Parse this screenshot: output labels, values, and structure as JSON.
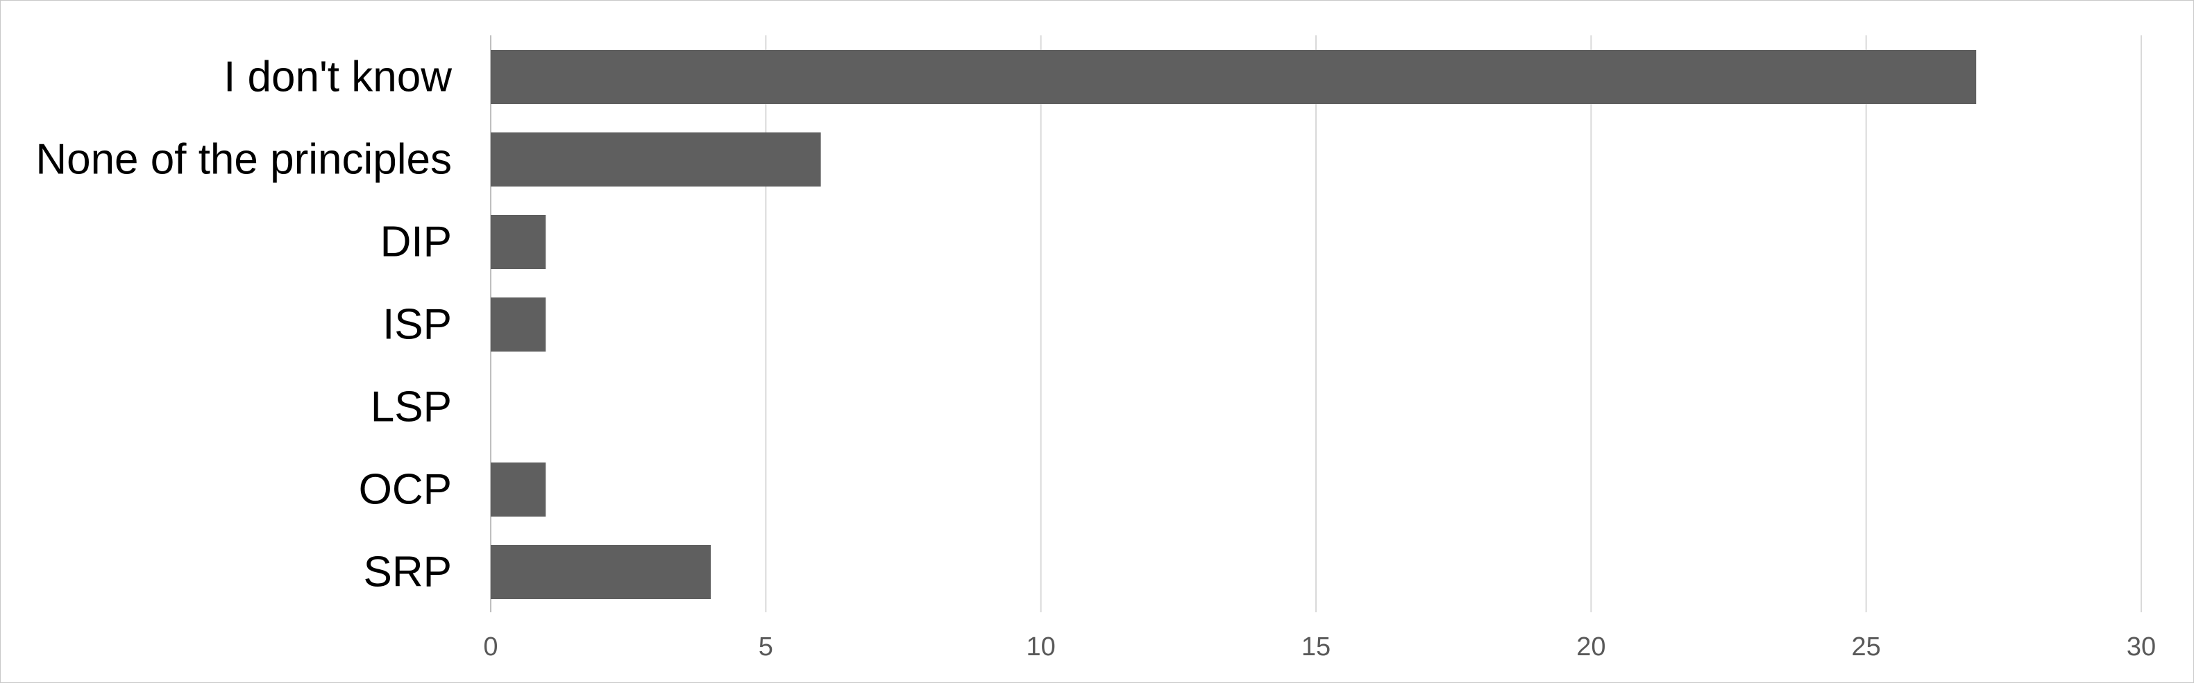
{
  "chart_data": {
    "type": "bar",
    "orientation": "horizontal",
    "categories": [
      "I don't know",
      "None of the principles",
      "DIP",
      "ISP",
      "LSP",
      "OCP",
      "SRP"
    ],
    "values": [
      27,
      6,
      1,
      1,
      0,
      1,
      4
    ],
    "xlim": [
      0,
      30
    ],
    "x_ticks": [
      0,
      5,
      10,
      15,
      20,
      25,
      30
    ],
    "title": "",
    "xlabel": "",
    "ylabel": "",
    "grid": "vertical",
    "legend": "none",
    "colors": {
      "bar": "#5f5f5f",
      "grid": "#d9d9d9",
      "border": "#c8c8c8"
    }
  }
}
